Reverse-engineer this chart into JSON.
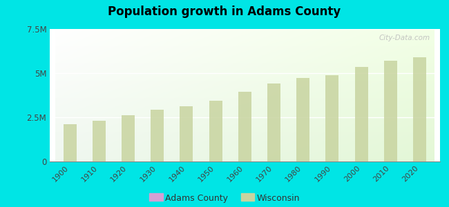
{
  "title": "Population growth in Adams County",
  "years": [
    1900,
    1910,
    1920,
    1930,
    1940,
    1950,
    1960,
    1970,
    1980,
    1990,
    2000,
    2010,
    2020
  ],
  "wisconsin_values": [
    2100000,
    2290000,
    2600000,
    2940000,
    3140000,
    3440000,
    3960000,
    4420000,
    4710000,
    4890000,
    5360000,
    5690000,
    5890000
  ],
  "bar_color_top": "#c8d4a0",
  "bar_color_bottom": "#c8d4a0",
  "bar_edge_color": "none",
  "adams_color": "#d4a0d4",
  "wisconsin_color": "#c8d4a0",
  "bg_color_topleft": "#f0fff8",
  "bg_color_topright": "#ffffff",
  "bg_color_bottom": "#b8f0d8",
  "outer_background": "#00e5e5",
  "ylim": [
    0,
    7500000
  ],
  "yticks": [
    0,
    2500000,
    5000000,
    7500000
  ],
  "ytick_labels": [
    "0",
    "2.5M",
    "5M",
    "7.5M"
  ],
  "watermark": "City-Data.com",
  "bar_width": 0.45
}
